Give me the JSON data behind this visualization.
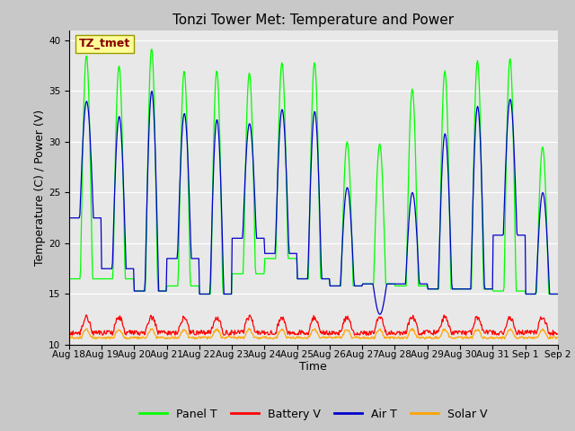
{
  "title": "Tonzi Tower Met: Temperature and Power",
  "xlabel": "Time",
  "ylabel": "Temperature (C) / Power (V)",
  "ylim": [
    10,
    41
  ],
  "n_days": 15,
  "fig_bg": "#c8c8c8",
  "plot_bg": "#e8e8e8",
  "colors": {
    "Panel T": "#00ff00",
    "Battery V": "#ff0000",
    "Air T": "#0000cc",
    "Solar V": "#ffa500"
  },
  "annotation_text": "TZ_tmet",
  "annotation_bg": "#ffff99",
  "annotation_fg": "#880000",
  "annotation_border": "#999900",
  "yticks": [
    10,
    15,
    20,
    25,
    30,
    35,
    40
  ],
  "xtick_labels": [
    "Aug 18",
    "Aug 19",
    "Aug 20",
    "Aug 21",
    "Aug 22",
    "Aug 23",
    "Aug 24",
    "Aug 25",
    "Aug 26",
    "Aug 27",
    "Aug 28",
    "Aug 29",
    "Aug 30",
    "Aug 31",
    "Sep 1",
    "Sep 2"
  ],
  "title_fontsize": 11,
  "axis_fontsize": 9,
  "tick_fontsize": 7.5,
  "legend_fontsize": 9,
  "day_panel_peaks": [
    38.5,
    37.5,
    39.2,
    37.0,
    37.0,
    36.8,
    37.8,
    37.8,
    30.0,
    29.8,
    35.2,
    37.0,
    38.0,
    38.2,
    29.5
  ],
  "day_panel_troughs": [
    16.5,
    16.5,
    15.3,
    15.8,
    15.0,
    17.0,
    18.5,
    16.5,
    15.8,
    16.0,
    15.8,
    15.5,
    15.5,
    15.3,
    15.0
  ],
  "day_air_peaks": [
    34.0,
    32.5,
    35.0,
    32.8,
    32.2,
    31.8,
    33.2,
    33.0,
    25.5,
    13.0,
    25.0,
    30.8,
    33.5,
    34.2,
    25.0
  ],
  "day_air_base": [
    22.5,
    17.5,
    15.3,
    18.5,
    15.0,
    20.5,
    19.0,
    16.5,
    15.8,
    16.0,
    16.0,
    15.5,
    15.5,
    20.8,
    15.0
  ]
}
